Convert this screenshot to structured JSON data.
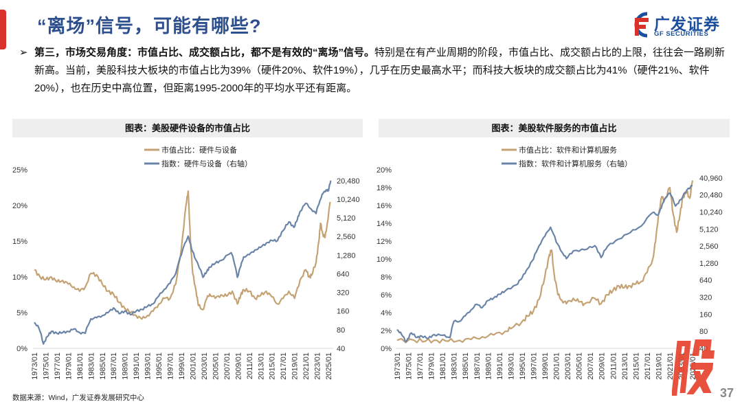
{
  "header": {
    "title": "“离场”信号，可能有哪些?",
    "logo_cn": "广发证券",
    "logo_en": "GF SECURITIES"
  },
  "bullet": {
    "marker": "➢",
    "bold": "第三，市场交易角度：市值占比、成交额占比，都不是有效的“离场”信号。",
    "rest": "特别是在有产业周期的阶段，市值占比、成交额占比的上限，往往会一路刷新新高。当前，美股科技大板块的市值占比为39%（硬件20%、软件19%），几乎在历史最高水平；而科技大板块的成交额占比为41%（硬件21%、软件20%），也在历史中高位置，但距离1995-2000年的平均水平还有距离。"
  },
  "footer": {
    "source": "数据来源：Wind，广发证券发展研究中心",
    "page": "37",
    "stamp": "股"
  },
  "colors": {
    "share": "#c4a274",
    "index": "#6a84a8",
    "title": "#2d4f8e",
    "accent": "#d9322b"
  },
  "chart_data": [
    {
      "type": "line",
      "title": "图表：美股硬件设备的市值占比",
      "x_tick_labels": [
        "1973/01",
        "1975/01",
        "1977/01",
        "1979/01",
        "1981/01",
        "1983/01",
        "1985/01",
        "1987/01",
        "1989/01",
        "1991/01",
        "1993/01",
        "1995/01",
        "1997/01",
        "1999/01",
        "2001/01",
        "2003/01",
        "2005/01",
        "2007/01",
        "2009/01",
        "2011/01",
        "2013/01",
        "2015/01",
        "2017/01",
        "2019/01",
        "2021/01",
        "2023/01",
        "2025/01"
      ],
      "xlim": [
        1973,
        2025.6
      ],
      "y_left": {
        "ticks": [
          "0%",
          "5%",
          "10%",
          "15%",
          "20%",
          "25%"
        ],
        "range": [
          0,
          25
        ]
      },
      "y_right": {
        "ticks": [
          "40",
          "80",
          "160",
          "320",
          "640",
          "1,280",
          "2,560",
          "5,120",
          "10,240",
          "20,480"
        ],
        "range": [
          40,
          20480
        ],
        "scale": "log2"
      },
      "series": [
        {
          "name": "市值占比：硬件与设备",
          "axis": "left",
          "color": "#c4a274",
          "points": [
            [
              1973,
              11
            ],
            [
              1974,
              10
            ],
            [
              1975,
              9.6
            ],
            [
              1976,
              10
            ],
            [
              1977,
              9.3
            ],
            [
              1978,
              9.5
            ],
            [
              1979,
              9
            ],
            [
              1980,
              8.6
            ],
            [
              1981,
              8
            ],
            [
              1982,
              8.6
            ],
            [
              1983,
              10.5
            ],
            [
              1984,
              10.3
            ],
            [
              1985,
              9
            ],
            [
              1986,
              8
            ],
            [
              1987,
              7.6
            ],
            [
              1988,
              6.4
            ],
            [
              1989,
              5.6
            ],
            [
              1990,
              5
            ],
            [
              1991,
              4.6
            ],
            [
              1992,
              4.1
            ],
            [
              1993,
              4.6
            ],
            [
              1994,
              5.2
            ],
            [
              1995,
              6.2
            ],
            [
              1996,
              7
            ],
            [
              1997,
              7
            ],
            [
              1998,
              9
            ],
            [
              1999,
              14
            ],
            [
              1999.8,
              20
            ],
            [
              2000.2,
              22
            ],
            [
              2000.6,
              15
            ],
            [
              2001,
              10.5
            ],
            [
              2001.6,
              8
            ],
            [
              2002,
              6
            ],
            [
              2002.8,
              5.4
            ],
            [
              2003.5,
              7
            ],
            [
              2004,
              7.6
            ],
            [
              2005,
              7
            ],
            [
              2006,
              7.5
            ],
            [
              2007,
              7.3
            ],
            [
              2008,
              8
            ],
            [
              2008.9,
              6.2
            ],
            [
              2009.5,
              7.5
            ],
            [
              2010,
              8.2
            ],
            [
              2011,
              8
            ],
            [
              2012,
              7
            ],
            [
              2013,
              7.4
            ],
            [
              2014,
              8
            ],
            [
              2015,
              7.2
            ],
            [
              2016,
              6.2
            ],
            [
              2017,
              7
            ],
            [
              2018,
              8
            ],
            [
              2019,
              7
            ],
            [
              2020,
              9.6
            ],
            [
              2021,
              11
            ],
            [
              2021.6,
              10
            ],
            [
              2022,
              10.2
            ],
            [
              2022.8,
              12
            ],
            [
              2023.3,
              15
            ],
            [
              2023.6,
              17.5
            ],
            [
              2024,
              16
            ],
            [
              2024.4,
              15.5
            ],
            [
              2024.8,
              17.5
            ],
            [
              2025.3,
              20.5
            ]
          ]
        },
        {
          "name": "指数：硬件与设备（右轴）",
          "axis": "right",
          "color": "#6a84a8",
          "points": [
            [
              1973,
              105
            ],
            [
              1973.8,
              85
            ],
            [
              1974.6,
              47
            ],
            [
              1975.3,
              62
            ],
            [
              1976,
              75
            ],
            [
              1977,
              70
            ],
            [
              1978,
              72
            ],
            [
              1979,
              75
            ],
            [
              1980,
              82
            ],
            [
              1981,
              72
            ],
            [
              1982,
              70
            ],
            [
              1983,
              120
            ],
            [
              1984,
              125
            ],
            [
              1985,
              135
            ],
            [
              1986,
              150
            ],
            [
              1987,
              180
            ],
            [
              1988,
              145
            ],
            [
              1989,
              160
            ],
            [
              1990,
              140
            ],
            [
              1991,
              160
            ],
            [
              1992,
              170
            ],
            [
              1993,
              190
            ],
            [
              1994,
              210
            ],
            [
              1995,
              280
            ],
            [
              1996,
              360
            ],
            [
              1997,
              450
            ],
            [
              1998,
              650
            ],
            [
              1999,
              1300
            ],
            [
              2000.2,
              2600
            ],
            [
              2000.8,
              1600
            ],
            [
              2001.5,
              1100
            ],
            [
              2002.8,
              560
            ],
            [
              2003.5,
              700
            ],
            [
              2004,
              820
            ],
            [
              2005,
              950
            ],
            [
              2006,
              1050
            ],
            [
              2007.8,
              1400
            ],
            [
              2008.9,
              560
            ],
            [
              2009.5,
              850
            ],
            [
              2010,
              1200
            ],
            [
              2011,
              1300
            ],
            [
              2012,
              1550
            ],
            [
              2013,
              1700
            ],
            [
              2014,
              2000
            ],
            [
              2015,
              2200
            ],
            [
              2016,
              2200
            ],
            [
              2017,
              3200
            ],
            [
              2018,
              4400
            ],
            [
              2018.9,
              3600
            ],
            [
              2019.5,
              4800
            ],
            [
              2020,
              6500
            ],
            [
              2021,
              8800
            ],
            [
              2022,
              7000
            ],
            [
              2022.8,
              6000
            ],
            [
              2023.5,
              9800
            ],
            [
              2024,
              12500
            ],
            [
              2024.6,
              14500
            ],
            [
              2025,
              14000
            ],
            [
              2025.4,
              20480
            ]
          ]
        }
      ]
    },
    {
      "type": "line",
      "title": "图表：美股软件服务的市值占比",
      "x_tick_labels": [
        "1973/01",
        "1975/01",
        "1977/01",
        "1979/01",
        "1981/01",
        "1983/01",
        "1985/01",
        "1987/01",
        "1989/01",
        "1991/01",
        "1993/01",
        "1995/01",
        "1997/01",
        "1999/01",
        "2001/01",
        "2003/01",
        "2005/01",
        "2007/01",
        "2009/01",
        "2011/01",
        "2013/01",
        "2015/01",
        "2017/01",
        "2019/01",
        "2021/01",
        "2023/01",
        "2025/01"
      ],
      "xlim": [
        1973,
        2025.6
      ],
      "y_left": {
        "ticks": [
          "0%",
          "2%",
          "4%",
          "6%",
          "8%",
          "10%",
          "12%",
          "14%",
          "16%",
          "18%",
          "20%"
        ],
        "range": [
          0,
          20
        ]
      },
      "y_right": {
        "ticks": [
          "40",
          "80",
          "160",
          "320",
          "640",
          "1,280",
          "2,560",
          "5,120",
          "10,240",
          "20,480",
          "40,960"
        ],
        "range": [
          40,
          40960
        ],
        "scale": "log2"
      },
      "series": [
        {
          "name": "市值占比：软件和计算机服务",
          "axis": "left",
          "color": "#c4a274",
          "points": [
            [
              1973,
              0.9
            ],
            [
              1976,
              0.9
            ],
            [
              1978,
              0.8
            ],
            [
              1980,
              0.9
            ],
            [
              1982,
              0.8
            ],
            [
              1984,
              0.9
            ],
            [
              1986,
              1
            ],
            [
              1988,
              1.3
            ],
            [
              1990,
              1.5
            ],
            [
              1992,
              1.9
            ],
            [
              1993,
              2.2
            ],
            [
              1995,
              3
            ],
            [
              1996,
              3.6
            ],
            [
              1997,
              4.2
            ],
            [
              1998,
              5.5
            ],
            [
              1999,
              8
            ],
            [
              1999.8,
              10.5
            ],
            [
              2000.2,
              11
            ],
            [
              2000.6,
              8.5
            ],
            [
              2001.3,
              6
            ],
            [
              2002,
              5.4
            ],
            [
              2002.8,
              5
            ],
            [
              2004,
              5.6
            ],
            [
              2005,
              5.2
            ],
            [
              2006,
              5
            ],
            [
              2007.8,
              5.6
            ],
            [
              2008.9,
              5
            ],
            [
              2010,
              6
            ],
            [
              2011,
              6.5
            ],
            [
              2012,
              7
            ],
            [
              2013,
              6.8
            ],
            [
              2014,
              7
            ],
            [
              2015,
              7.2
            ],
            [
              2016,
              7.5
            ],
            [
              2017,
              8.5
            ],
            [
              2018,
              10
            ],
            [
              2018.5,
              12
            ],
            [
              2019,
              15
            ],
            [
              2019.6,
              17
            ],
            [
              2020,
              16.5
            ],
            [
              2021,
              18
            ],
            [
              2021.6,
              15
            ],
            [
              2022.2,
              13
            ],
            [
              2022.8,
              15
            ],
            [
              2023.3,
              17
            ],
            [
              2024,
              17.5
            ],
            [
              2024.5,
              16.8
            ],
            [
              2025,
              18.8
            ]
          ]
        },
        {
          "name": "指数：软件和计算机服务（右轴）",
          "axis": "right",
          "color": "#6a84a8",
          "points": [
            [
              1973,
              86
            ],
            [
              1973.8,
              70
            ],
            [
              1974.6,
              52
            ],
            [
              1975.5,
              75
            ],
            [
              1976.5,
              62
            ],
            [
              1977.3,
              66
            ],
            [
              1978.5,
              60
            ],
            [
              1979.5,
              70
            ],
            [
              1981,
              68
            ],
            [
              1982.3,
              62
            ],
            [
              1983,
              120
            ],
            [
              1984,
              120
            ],
            [
              1985,
              150
            ],
            [
              1986,
              190
            ],
            [
              1987,
              240
            ],
            [
              1988,
              210
            ],
            [
              1989,
              280
            ],
            [
              1990,
              310
            ],
            [
              1991,
              360
            ],
            [
              1992,
              410
            ],
            [
              1994,
              530
            ],
            [
              1995,
              700
            ],
            [
              1996,
              1030
            ],
            [
              1997,
              1500
            ],
            [
              1998,
              2600
            ],
            [
              1999,
              3800
            ],
            [
              2000,
              5500
            ],
            [
              2001,
              3000
            ],
            [
              2002,
              2000
            ],
            [
              2002.8,
              1530
            ],
            [
              2004,
              2100
            ],
            [
              2006,
              2200
            ],
            [
              2007.8,
              2600
            ],
            [
              2008.9,
              1600
            ],
            [
              2010,
              2500
            ],
            [
              2012,
              3400
            ],
            [
              2014,
              4400
            ],
            [
              2016,
              5800
            ],
            [
              2018,
              10000
            ],
            [
              2018.9,
              9000
            ],
            [
              2019.5,
              12000
            ],
            [
              2020,
              17000
            ],
            [
              2021,
              22000
            ],
            [
              2022,
              13000
            ],
            [
              2023,
              17000
            ],
            [
              2024,
              25000
            ],
            [
              2025,
              30000
            ]
          ]
        }
      ]
    }
  ]
}
